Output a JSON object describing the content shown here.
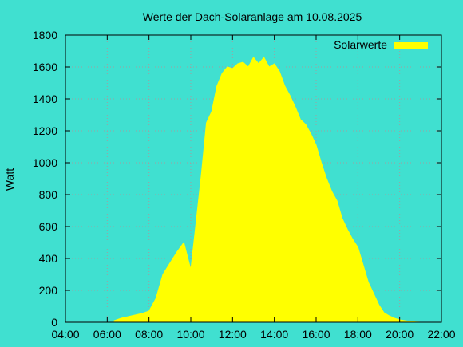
{
  "chart_data": {
    "type": "area",
    "title": "Werte der Dach-Solaranlage am 10.08.2025",
    "xlabel": "",
    "ylabel": "Watt",
    "x_ticks": [
      "04:00",
      "06:00",
      "08:00",
      "10:00",
      "12:00",
      "14:00",
      "16:00",
      "18:00",
      "20:00",
      "22:00"
    ],
    "y_ticks": [
      "0",
      "200",
      "400",
      "600",
      "800",
      "1000",
      "1200",
      "1400",
      "1600",
      "1800"
    ],
    "xlim_hours": [
      4,
      22
    ],
    "ylim": [
      0,
      1800
    ],
    "grid": true,
    "legend_position": "top-right",
    "colors": {
      "background": "#40e0d0",
      "series": "#ffff00",
      "grid": "#a0a0a0",
      "axis": "#000000"
    },
    "series": [
      {
        "name": "Solarwerte",
        "x": [
          "06:20",
          "06:40",
          "07:00",
          "07:20",
          "07:40",
          "08:00",
          "08:20",
          "08:40",
          "09:00",
          "09:20",
          "09:40",
          "10:00",
          "10:15",
          "10:30",
          "10:45",
          "11:00",
          "11:15",
          "11:30",
          "11:45",
          "12:00",
          "12:15",
          "12:30",
          "12:45",
          "13:00",
          "13:15",
          "13:30",
          "13:45",
          "14:00",
          "14:15",
          "14:30",
          "14:45",
          "15:00",
          "15:15",
          "15:30",
          "15:45",
          "16:00",
          "16:15",
          "16:30",
          "16:45",
          "17:00",
          "17:15",
          "17:30",
          "17:45",
          "18:00",
          "18:15",
          "18:30",
          "18:45",
          "19:00",
          "19:15",
          "19:30",
          "19:45",
          "20:00",
          "20:15",
          "20:30",
          "20:45",
          "21:00"
        ],
        "values": [
          10,
          25,
          35,
          45,
          55,
          70,
          150,
          300,
          370,
          440,
          500,
          330,
          620,
          920,
          1250,
          1320,
          1480,
          1560,
          1600,
          1590,
          1620,
          1630,
          1600,
          1660,
          1620,
          1660,
          1600,
          1620,
          1570,
          1480,
          1420,
          1350,
          1270,
          1240,
          1180,
          1110,
          1000,
          900,
          820,
          760,
          650,
          580,
          520,
          470,
          360,
          250,
          180,
          110,
          60,
          40,
          25,
          15,
          10,
          5,
          2,
          0
        ]
      }
    ]
  }
}
